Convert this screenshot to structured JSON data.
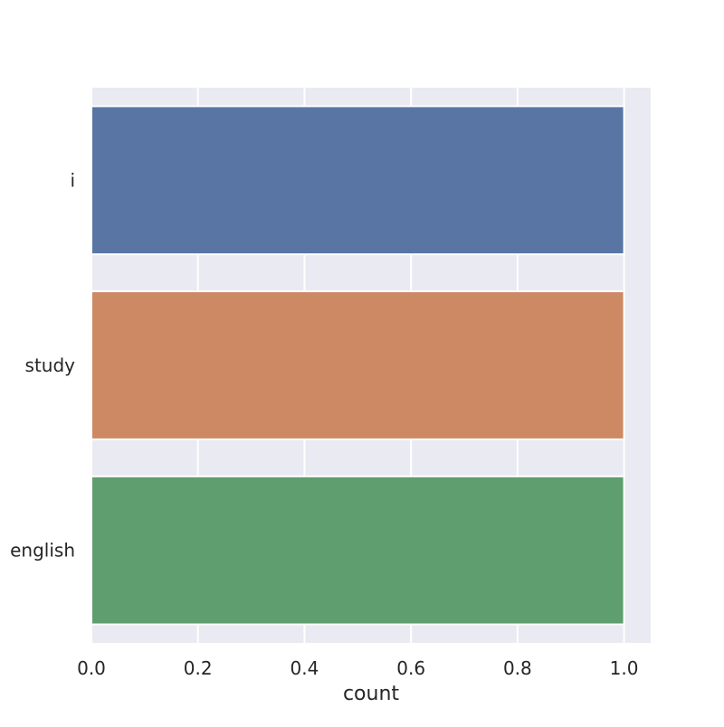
{
  "chart_data": {
    "type": "bar",
    "orientation": "horizontal",
    "categories": [
      "i",
      "study",
      "english"
    ],
    "values": [
      1,
      1,
      1
    ],
    "colors": [
      "#5875a4",
      "#cc8963",
      "#5f9e6e"
    ],
    "title": "",
    "xlabel": "count",
    "ylabel": "",
    "xlim": [
      0,
      1.05
    ],
    "xticks": [
      "0.0",
      "0.2",
      "0.4",
      "0.6",
      "0.8",
      "1.0"
    ],
    "grid": true,
    "legend": "none",
    "style": {
      "plot_background": "#eaeaf2",
      "grid_color": "#ffffff"
    }
  }
}
